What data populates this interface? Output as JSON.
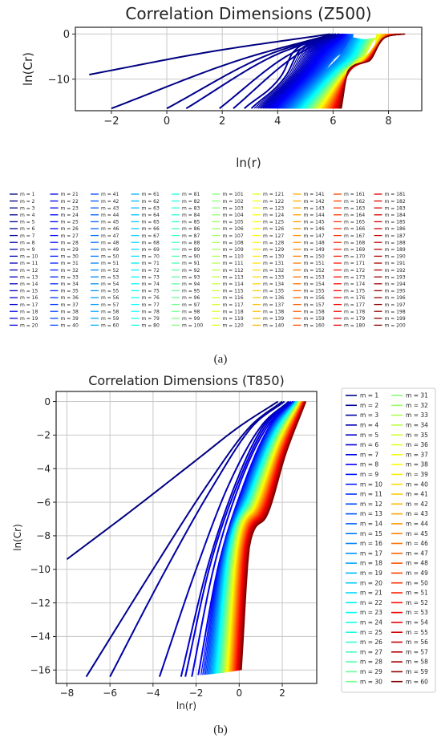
{
  "figure": {
    "caption_a": "(a)",
    "caption_b": "(b)"
  },
  "chart_data": [
    {
      "type": "line",
      "title": "Correlation Dimensions (Z500)",
      "xlabel": "ln(r)",
      "ylabel": "ln(Cr)",
      "xlim": [
        -3.3,
        9.2
      ],
      "ylim": [
        -17,
        1.5
      ],
      "xticks": [
        -2,
        0,
        2,
        4,
        6,
        8
      ],
      "yticks": [
        0,
        -10
      ],
      "grid": true,
      "legend": "below plot, 10 columns",
      "colormap": "jet",
      "series_count": 200,
      "series_prefix": "m = ",
      "curves_note": "lines rise from ln(Cr) about -16.5 to 0; later m shifted right",
      "sample_series": [
        {
          "name": "m = 1",
          "x": [
            -2.8,
            5.9
          ],
          "y": [
            -9,
            0
          ]
        },
        {
          "name": "m = 2",
          "x": [
            -2.0,
            6.0
          ],
          "y": [
            -16.5,
            0
          ]
        },
        {
          "name": "m = 3",
          "x": [
            0.0,
            6.1
          ],
          "y": [
            -16.5,
            0
          ]
        },
        {
          "name": "m = 200",
          "x": [
            6.3,
            6.6,
            7.3,
            7.8,
            8.6
          ],
          "y": [
            -16.5,
            -8,
            -6,
            -1,
            0
          ]
        }
      ]
    },
    {
      "type": "line",
      "title": "Correlation Dimensions (T850)",
      "xlabel": "ln(r)",
      "ylabel": "ln(Cr)",
      "xlim": [
        -8.5,
        3.6
      ],
      "ylim": [
        -16.8,
        0.6
      ],
      "xticks": [
        -8,
        -6,
        -4,
        -2,
        0,
        2
      ],
      "yticks": [
        0,
        -2,
        -4,
        -6,
        -8,
        -10,
        -12,
        -14,
        -16
      ],
      "grid": true,
      "legend": "right, 2 columns",
      "colormap": "jet",
      "series_count": 60,
      "series_prefix": "m = ",
      "sample_series": [
        {
          "name": "m = 1",
          "x": [
            -8.0,
            -5.0,
            -2.0,
            0.0,
            1.8
          ],
          "y": [
            -9.4,
            -6.5,
            -3.5,
            -1.5,
            0
          ]
        },
        {
          "name": "m = 2",
          "x": [
            -7.1,
            -4.0,
            -1.5,
            0.5,
            2.0
          ],
          "y": [
            -16.4,
            -10.0,
            -5.0,
            -1.5,
            0
          ]
        },
        {
          "name": "m = 60",
          "x": [
            0.1,
            0.5,
            1.2,
            2.2,
            3.1
          ],
          "y": [
            -16.0,
            -8.5,
            -7.0,
            -3.0,
            0
          ]
        }
      ]
    }
  ]
}
